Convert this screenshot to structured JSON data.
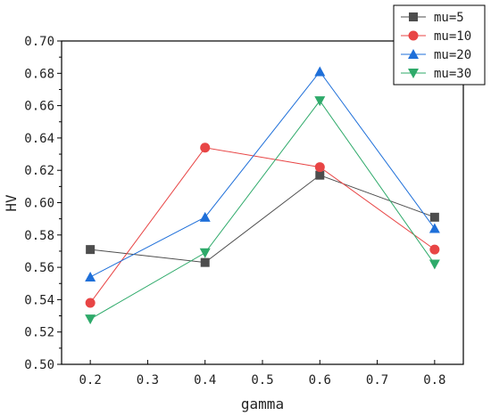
{
  "chart_data": {
    "type": "line",
    "xlabel": "gamma",
    "ylabel": "HV",
    "x": [
      0.2,
      0.4,
      0.6,
      0.8
    ],
    "xlim": [
      0.15,
      0.85
    ],
    "ylim": [
      0.5,
      0.7
    ],
    "xticks": [
      "0.2",
      "0.3",
      "0.4",
      "0.5",
      "0.6",
      "0.7",
      "0.8"
    ],
    "yticks": [
      "0.50",
      "0.52",
      "0.54",
      "0.56",
      "0.58",
      "0.60",
      "0.62",
      "0.64",
      "0.66",
      "0.68",
      "0.70"
    ],
    "grid": false,
    "legend_position": "top-right",
    "series": [
      {
        "name": "mu=5",
        "values": [
          0.571,
          0.563,
          0.617,
          0.591
        ],
        "color": "#4d4d4d",
        "marker": "square"
      },
      {
        "name": "mu=10",
        "values": [
          0.538,
          0.634,
          0.622,
          0.571
        ],
        "color": "#e84545",
        "marker": "circle"
      },
      {
        "name": "mu=20",
        "values": [
          0.554,
          0.591,
          0.681,
          0.584
        ],
        "color": "#1e6fd9",
        "marker": "triangle-up"
      },
      {
        "name": "mu=30",
        "values": [
          0.528,
          0.569,
          0.663,
          0.562
        ],
        "color": "#2eaa6a",
        "marker": "triangle-down"
      }
    ]
  }
}
